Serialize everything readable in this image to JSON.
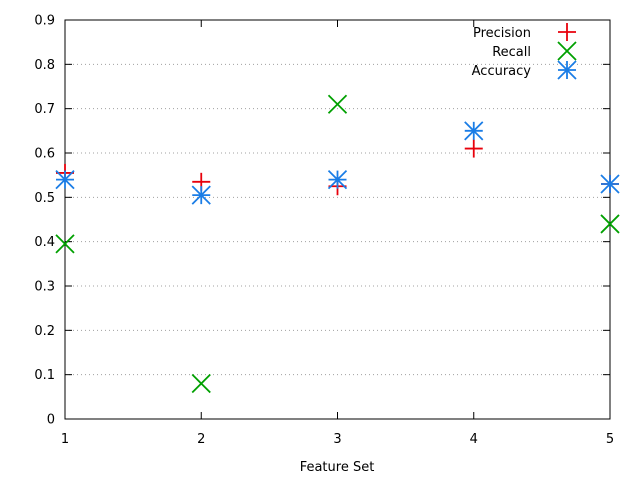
{
  "chart_data": {
    "type": "scatter",
    "xlabel": "Feature Set",
    "ylabel": "",
    "xlim": [
      1,
      5
    ],
    "ylim": [
      0,
      0.9
    ],
    "xticks": [
      "1",
      "2",
      "3",
      "4",
      "5"
    ],
    "yticks": [
      "0",
      "0.1",
      "0.2",
      "0.3",
      "0.4",
      "0.5",
      "0.6",
      "0.7",
      "0.8",
      "0.9"
    ],
    "grid": "horizontal dotted",
    "legend_position": "top-right",
    "series": [
      {
        "name": "Precision",
        "marker": "plus",
        "color": "#e8000b",
        "points": [
          [
            1,
            0.555
          ],
          [
            2,
            0.535
          ],
          [
            3,
            0.525
          ],
          [
            4,
            0.61
          ],
          [
            5,
            0.53
          ]
        ]
      },
      {
        "name": "Recall",
        "marker": "cross",
        "color": "#00a000",
        "points": [
          [
            1,
            0.395
          ],
          [
            2,
            0.08
          ],
          [
            3,
            0.71
          ],
          [
            4,
            null
          ],
          [
            5,
            0.44
          ]
        ]
      },
      {
        "name": "Accuracy",
        "marker": "star",
        "color": "#1a7de6",
        "points": [
          [
            1,
            0.54
          ],
          [
            2,
            0.505
          ],
          [
            3,
            0.54
          ],
          [
            4,
            0.65
          ],
          [
            5,
            0.53
          ]
        ]
      }
    ]
  }
}
